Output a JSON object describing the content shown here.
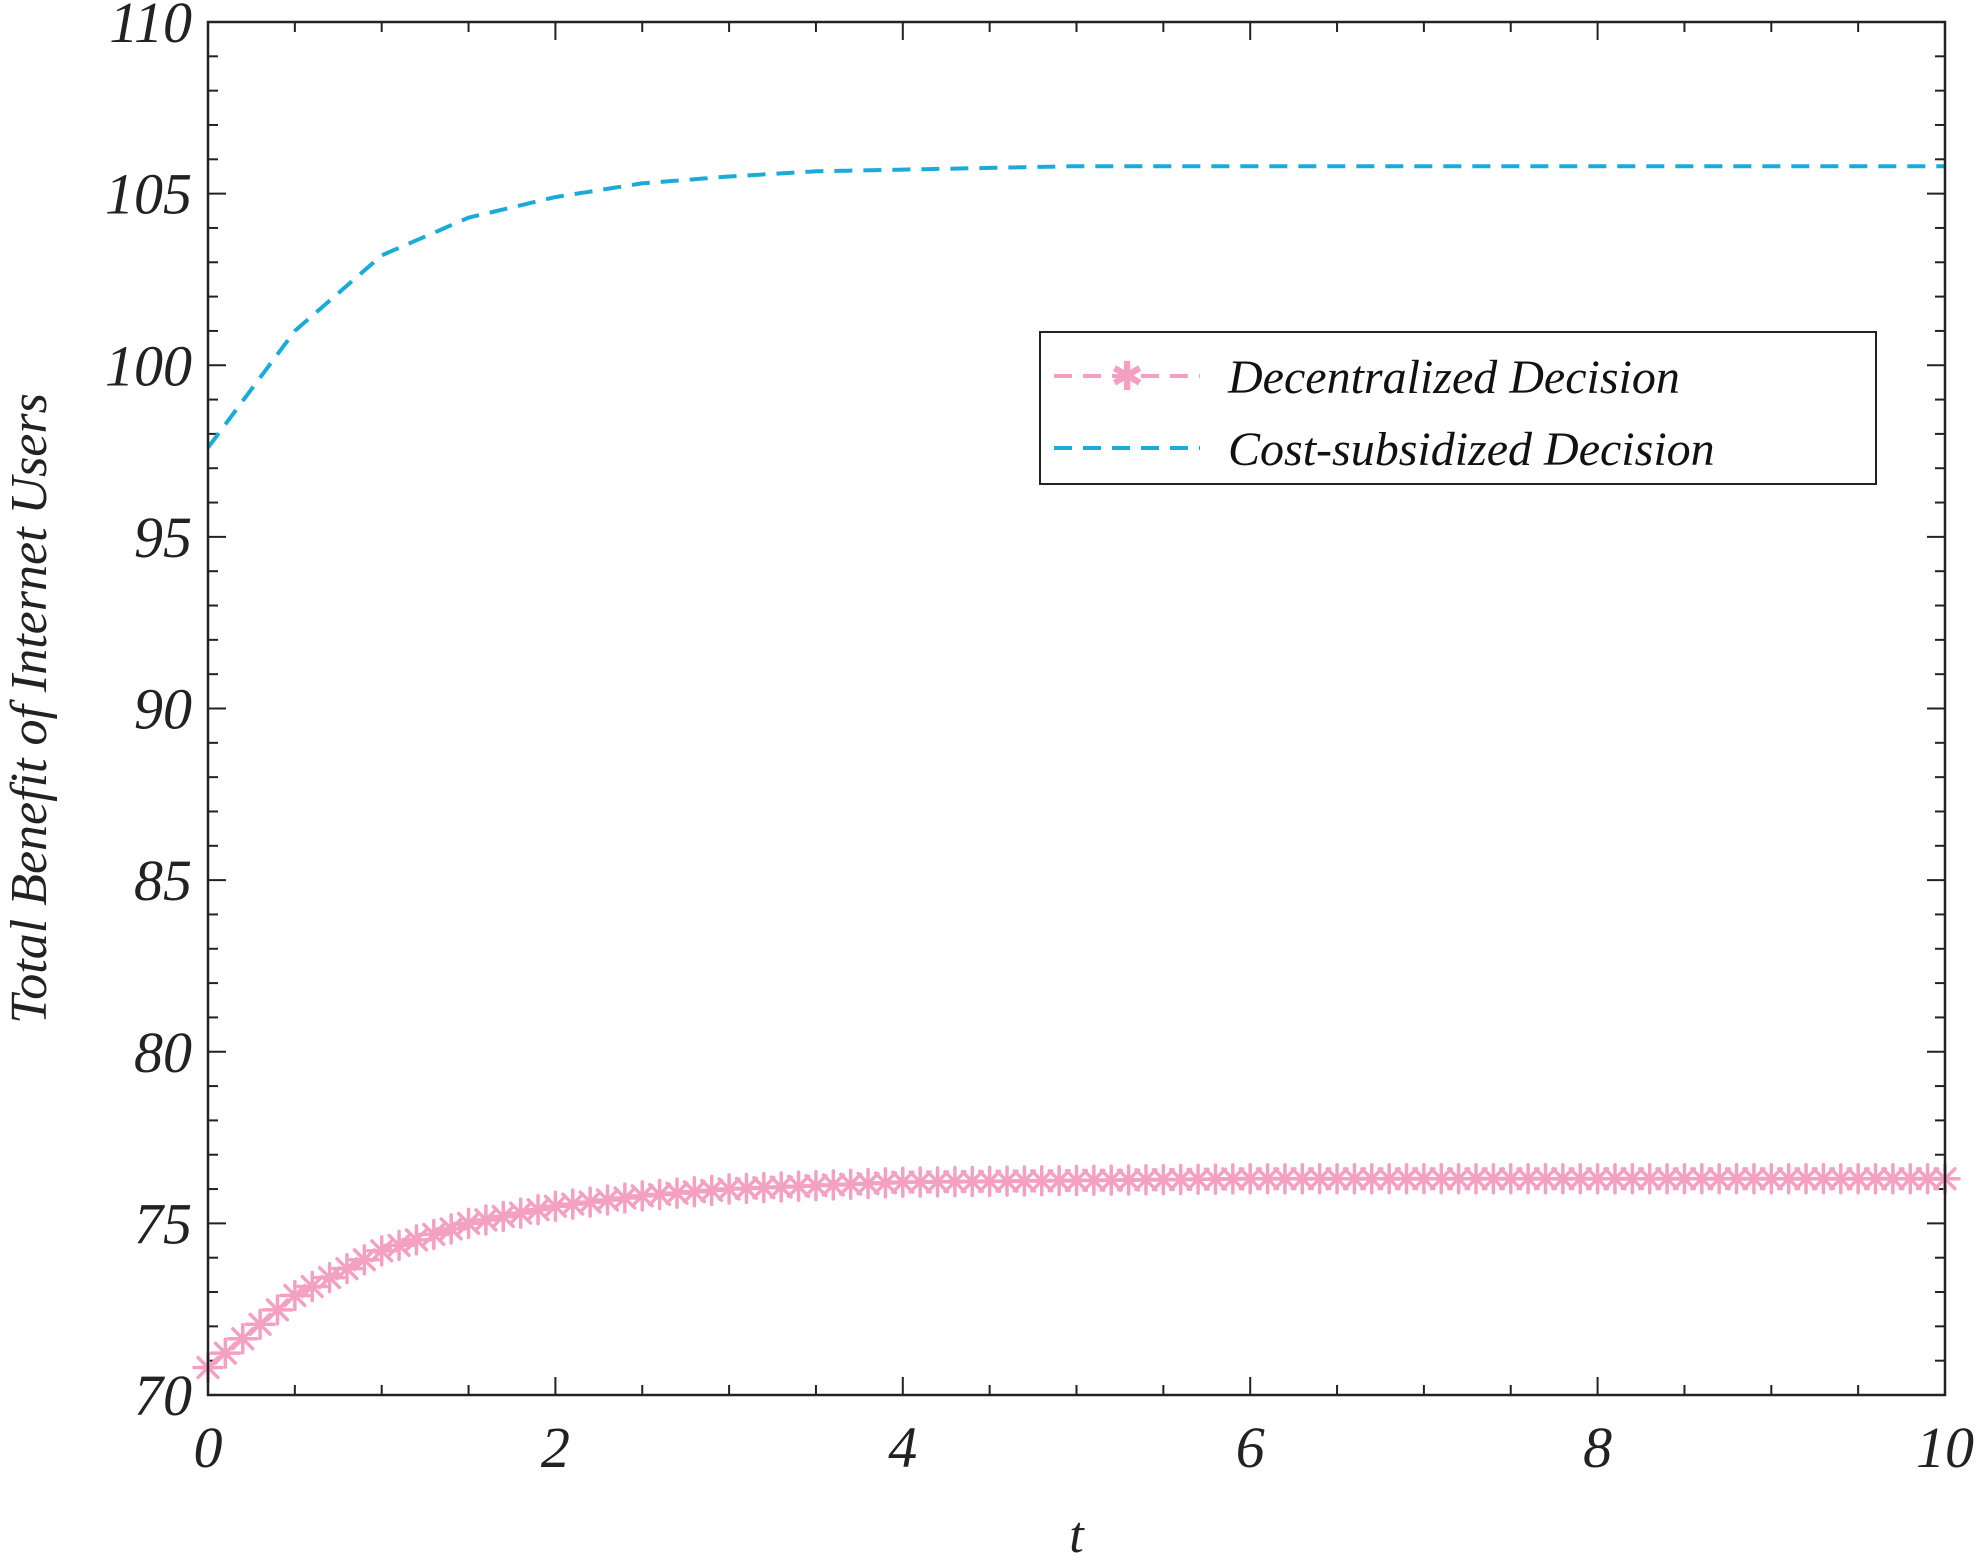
{
  "chart_data": {
    "type": "line",
    "xlabel": "t",
    "ylabel": "Total Benefit of Internet Users",
    "xlim": [
      0,
      10
    ],
    "ylim": [
      70,
      110
    ],
    "xticks": [
      0,
      2,
      4,
      6,
      8,
      10
    ],
    "yticks": [
      70,
      75,
      80,
      85,
      90,
      95,
      100,
      105,
      110
    ],
    "grid": false,
    "legend_position": "upper-right",
    "series": [
      {
        "name": "Decentralized Decision",
        "color": "#f4a0c0",
        "line_style": "dashed",
        "marker": "asterisk",
        "x": [
          0,
          0.5,
          1,
          1.5,
          2,
          2.5,
          3,
          3.5,
          4,
          5,
          6,
          7,
          8,
          9,
          10
        ],
        "y": [
          70.8,
          72.9,
          74.2,
          75.0,
          75.5,
          75.8,
          76.0,
          76.1,
          76.2,
          76.25,
          76.3,
          76.3,
          76.3,
          76.3,
          76.3
        ]
      },
      {
        "name": "Cost-subsidized Decision",
        "color": "#1aabd9",
        "line_style": "dashed",
        "marker": "none",
        "x": [
          0,
          0.5,
          1,
          1.5,
          2,
          2.5,
          3,
          3.5,
          4,
          5,
          6,
          7,
          8,
          9,
          10
        ],
        "y": [
          97.6,
          101.0,
          103.2,
          104.3,
          104.9,
          105.3,
          105.5,
          105.65,
          105.7,
          105.8,
          105.8,
          105.8,
          105.8,
          105.8,
          105.8
        ]
      }
    ]
  }
}
